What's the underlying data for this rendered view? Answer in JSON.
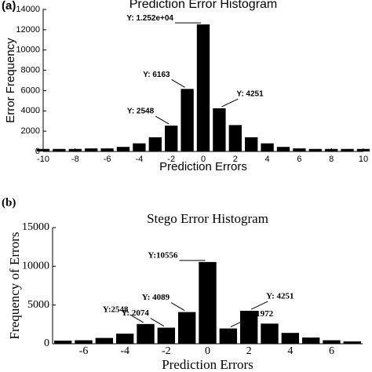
{
  "chart_data": [
    {
      "type": "bar",
      "panel_label": "(a)",
      "title": "Prediction Error Histogram",
      "xlabel": "Prediction Errors",
      "ylabel": "Error Frequency",
      "font": "sans",
      "x": [
        -10,
        -9,
        -8,
        -7,
        -6,
        -5,
        -4,
        -3,
        -2,
        -1,
        0,
        1,
        2,
        3,
        4,
        5,
        6,
        7,
        8,
        9,
        10
      ],
      "values": [
        250,
        250,
        250,
        300,
        300,
        450,
        800,
        1400,
        2548,
        6163,
        12520,
        4251,
        2600,
        1400,
        800,
        450,
        300,
        250,
        250,
        250,
        250
      ],
      "value_labels": [
        null,
        null,
        null,
        null,
        null,
        null,
        null,
        null,
        "Y: 2548",
        "Y: 6163",
        "Y: 1.252e+04",
        "Y: 4251",
        null,
        null,
        null,
        null,
        null,
        null,
        null,
        null,
        null
      ],
      "color": "#000000",
      "xlim": [
        -10,
        10
      ],
      "xticks": [
        -10,
        -8,
        -6,
        -4,
        -2,
        0,
        2,
        4,
        6,
        8,
        10
      ],
      "ylim": [
        0,
        14000
      ],
      "yticks": [
        0,
        2000,
        4000,
        6000,
        8000,
        10000,
        12000,
        14000
      ]
    },
    {
      "type": "bar",
      "panel_label": "(b)",
      "title": "Stego Error Histogram",
      "xlabel": "Prediction Errors",
      "ylabel": "Frequency of Errors",
      "font": "serif",
      "x": [
        -7,
        -6,
        -5,
        -4,
        -3,
        -2,
        -1,
        0,
        1,
        2,
        3,
        4,
        5,
        6,
        7
      ],
      "values": [
        400,
        450,
        750,
        1300,
        2548,
        2074,
        4089,
        10556,
        1972,
        4251,
        2600,
        1400,
        800,
        450,
        300
      ],
      "value_labels": [
        null,
        null,
        null,
        null,
        "Y:2548",
        "Y: 2074",
        "Y: 4089",
        "Y:10556",
        "Y: 1972",
        "Y: 4251",
        null,
        null,
        null,
        null,
        null
      ],
      "color": "#000000",
      "xlim": [
        -7.5,
        7.5
      ],
      "xticks": [
        -6,
        -4,
        -2,
        0,
        2,
        4,
        6
      ],
      "ylim": [
        0,
        15000
      ],
      "yticks": [
        0,
        5000,
        10000,
        15000
      ]
    }
  ]
}
